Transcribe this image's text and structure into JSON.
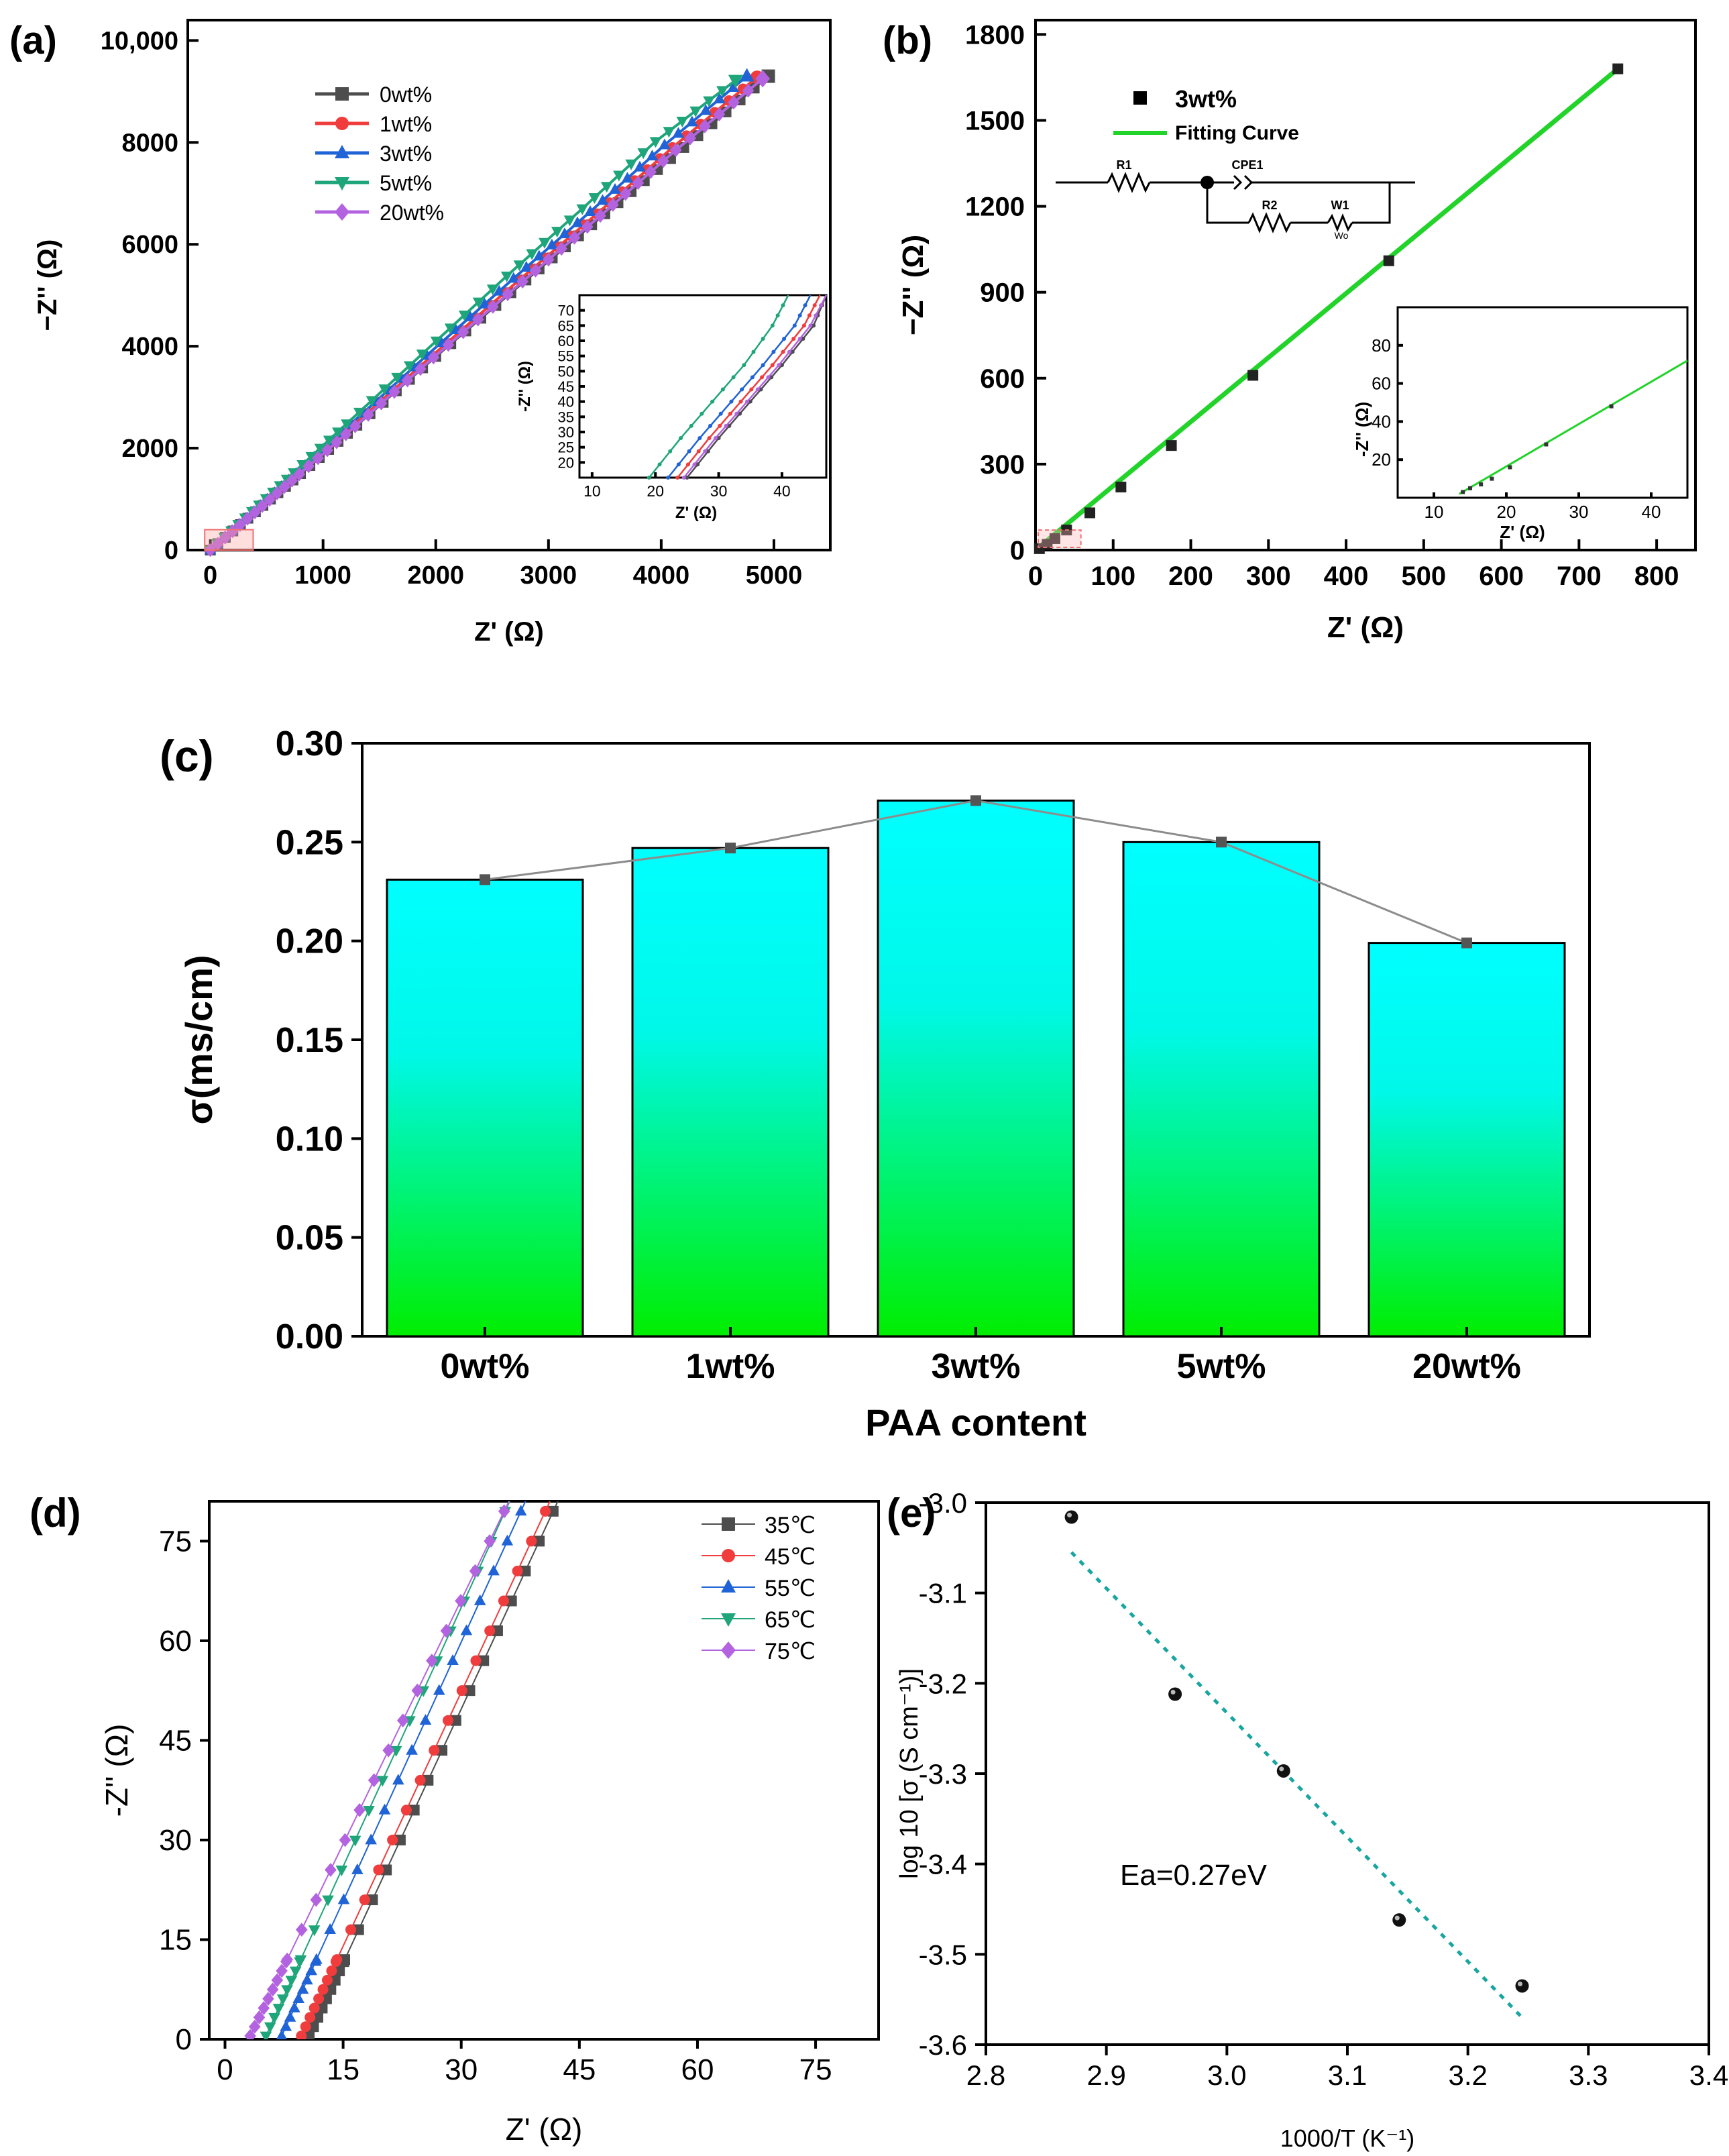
{
  "panels": {
    "a": "(a)",
    "b": "(b)",
    "c": "(c)",
    "d": "(d)",
    "e": "(e)"
  },
  "chart_data": [
    {
      "id": "a",
      "type": "line",
      "xlabel": "Z' (Ω)",
      "ylabel": "−Z'' (Ω)",
      "xlim": [
        -200,
        5500
      ],
      "ylim": [
        0,
        10400
      ],
      "xticks": [
        "0",
        "1000",
        "2000",
        "3000",
        "4000",
        "5000"
      ],
      "xtick_values": [
        0,
        1000,
        2000,
        3000,
        4000,
        5000
      ],
      "yticks": [
        "0",
        "2000",
        "4000",
        "6000",
        "8000",
        "10,000"
      ],
      "ytick_values": [
        0,
        2000,
        4000,
        6000,
        8000,
        10000
      ],
      "series": [
        {
          "name": "0wt%",
          "color": "#4d4d4d",
          "marker": "square",
          "x": [
            0,
            400,
            800,
            1300,
            2000,
            2800,
            3500,
            4200,
            4950
          ],
          "y": [
            0,
            750,
            1500,
            2450,
            3800,
            5300,
            6600,
            7900,
            9300
          ]
        },
        {
          "name": "1wt%",
          "color": "#f03c3c",
          "marker": "circle",
          "x": [
            0,
            390,
            780,
            1270,
            1960,
            2740,
            3430,
            4100,
            4850
          ],
          "y": [
            0,
            750,
            1500,
            2450,
            3800,
            5300,
            6600,
            7900,
            9280
          ]
        },
        {
          "name": "3wt%",
          "color": "#1f63d6",
          "marker": "triangle-up",
          "x": [
            0,
            380,
            760,
            1240,
            1920,
            2690,
            3370,
            4030,
            4760
          ],
          "y": [
            0,
            750,
            1500,
            2460,
            3820,
            5330,
            6640,
            7950,
            9300
          ]
        },
        {
          "name": "5wt%",
          "color": "#1ea57a",
          "marker": "triangle-down",
          "x": [
            0,
            370,
            740,
            1210,
            1880,
            2630,
            3300,
            3950,
            4660
          ],
          "y": [
            0,
            760,
            1520,
            2480,
            3850,
            5380,
            6700,
            8020,
            9220
          ]
        },
        {
          "name": "20wt%",
          "color": "#b463e0",
          "marker": "diamond",
          "x": [
            0,
            395,
            790,
            1285,
            1980,
            2770,
            3460,
            4130,
            4900
          ],
          "y": [
            0,
            740,
            1490,
            2430,
            3780,
            5270,
            6560,
            7850,
            9250
          ]
        }
      ],
      "inset": {
        "xlabel": "Z' (Ω)",
        "ylabel": "-Z'' (Ω)",
        "xlim": [
          8,
          47
        ],
        "ylim": [
          15,
          75
        ],
        "xticks": [
          "10",
          "20",
          "30",
          "40"
        ],
        "yticks": [
          "20",
          "25",
          "30",
          "35",
          "40",
          "45",
          "50",
          "55",
          "60",
          "65",
          "70"
        ],
        "series": [
          {
            "name": "0wt%",
            "x": [
              25,
              30,
              35,
              40,
              45,
              47
            ],
            "y": [
              15,
              28,
              40,
              52,
              65,
              75
            ]
          },
          {
            "name": "1wt%",
            "x": [
              23.5,
              28.5,
              33.5,
              38.5,
              43.5,
              46
            ],
            "y": [
              15,
              28,
              40,
              52,
              65,
              75
            ]
          },
          {
            "name": "3wt%",
            "x": [
              22,
              27,
              32,
              37,
              42,
              44.5
            ],
            "y": [
              15,
              28,
              40,
              52,
              65,
              75
            ]
          },
          {
            "name": "5wt%",
            "x": [
              19,
              24,
              29,
              34,
              38.5,
              41
            ],
            "y": [
              15,
              28,
              40,
              52,
              65,
              75
            ]
          },
          {
            "name": "20wt%",
            "x": [
              24.5,
              29.5,
              34.5,
              39.5,
              44.5,
              47
            ],
            "y": [
              15,
              28,
              40,
              52,
              65,
              75
            ]
          }
        ]
      }
    },
    {
      "id": "b",
      "type": "scatter",
      "xlabel": "Z' (Ω)",
      "ylabel": "−Z'' (Ω)",
      "xlim": [
        0,
        850
      ],
      "ylim": [
        0,
        1850
      ],
      "xticks": [
        "0",
        "100",
        "200",
        "300",
        "400",
        "500",
        "600",
        "700",
        "800"
      ],
      "xtick_values": [
        0,
        100,
        200,
        300,
        400,
        500,
        600,
        700,
        800
      ],
      "yticks": [
        "0",
        "300",
        "600",
        "900",
        "1200",
        "1500",
        "1800"
      ],
      "ytick_values": [
        0,
        300,
        600,
        900,
        1200,
        1500,
        1800
      ],
      "series": [
        {
          "name": "3wt%",
          "x": [
            5,
            15,
            25,
            40,
            70,
            110,
            175,
            280,
            455,
            750
          ],
          "y": [
            5,
            20,
            40,
            70,
            130,
            220,
            365,
            610,
            1010,
            1680
          ]
        },
        {
          "name": "Fitting Curve",
          "x": [
            0,
            750
          ],
          "y": [
            0,
            1680
          ]
        }
      ],
      "circuit": {
        "r1": "R1",
        "cpe": "CPE1",
        "r2": "R2",
        "w1": "W1",
        "wo": "Wo"
      },
      "inset": {
        "xlabel": "Z' (Ω)",
        "ylabel": "-Z'' (Ω)",
        "xlim": [
          5,
          45
        ],
        "ylim": [
          0,
          100
        ],
        "xticks": [
          "10",
          "20",
          "30",
          "40"
        ],
        "yticks": [
          "20",
          "40",
          "60",
          "80"
        ],
        "x": [
          14,
          15,
          16.5,
          18,
          20.5,
          25.5,
          34.5
        ],
        "y": [
          3,
          5,
          7,
          10,
          16,
          28,
          48
        ]
      }
    },
    {
      "id": "c",
      "type": "bar",
      "xlabel": "PAA content",
      "ylabel": "σ(ms/cm)",
      "categories": [
        "0wt%",
        "1wt%",
        "3wt%",
        "5wt%",
        "20wt%"
      ],
      "values": [
        0.231,
        0.247,
        0.271,
        0.25,
        0.199
      ],
      "ylim": [
        0,
        0.3
      ],
      "yticks": [
        "0.00",
        "0.05",
        "0.10",
        "0.15",
        "0.20",
        "0.25",
        "0.30"
      ],
      "ytick_values": [
        0,
        0.05,
        0.1,
        0.15,
        0.2,
        0.25,
        0.3
      ]
    },
    {
      "id": "d",
      "type": "line",
      "xlabel": "Z' (Ω)",
      "ylabel": "-Z'' (Ω)",
      "xlim": [
        -2,
        83
      ],
      "ylim": [
        0,
        81
      ],
      "xticks": [
        "0",
        "15",
        "30",
        "45",
        "60",
        "75"
      ],
      "xtick_values": [
        0,
        15,
        30,
        45,
        60,
        75
      ],
      "yticks": [
        "0",
        "15",
        "30",
        "45",
        "60",
        "75"
      ],
      "ytick_values": [
        0,
        15,
        30,
        45,
        60,
        75
      ],
      "series": [
        {
          "name": "35℃",
          "color": "#4d4d4d",
          "marker": "square",
          "x0": 10.5,
          "slope": 2.55
        },
        {
          "name": "45℃",
          "color": "#f03c3c",
          "marker": "circle",
          "x0": 9.5,
          "slope": 2.55
        },
        {
          "name": "55℃",
          "color": "#1f63d6",
          "marker": "triangle-up",
          "x0": 7.0,
          "slope": 2.6
        },
        {
          "name": "65℃",
          "color": "#1ea57a",
          "marker": "triangle-down",
          "x0": 5.0,
          "slope": 2.6
        },
        {
          "name": "75℃",
          "color": "#b463e0",
          "marker": "diamond",
          "x0": 3.0,
          "slope": 2.45
        }
      ]
    },
    {
      "id": "e",
      "type": "scatter",
      "xlabel": "1000/T (K⁻¹)",
      "ylabel": "log 10 [σ (S cm⁻¹)]",
      "xlim": [
        2.8,
        3.4
      ],
      "ylim": [
        -3.6,
        -3.0
      ],
      "xticks": [
        "2.8",
        "2.9",
        "3.0",
        "3.1",
        "3.2",
        "3.3",
        "3.4"
      ],
      "xtick_values": [
        2.8,
        2.9,
        3.0,
        3.1,
        3.2,
        3.3,
        3.4
      ],
      "yticks": [
        "-3.0",
        "-3.1",
        "-3.2",
        "-3.3",
        "-3.4",
        "-3.5",
        "-3.6"
      ],
      "ytick_values": [
        -3.0,
        -3.1,
        -3.2,
        -3.3,
        -3.4,
        -3.5,
        -3.6
      ],
      "x": [
        2.871,
        2.957,
        3.047,
        3.143,
        3.245
      ],
      "y": [
        -3.016,
        -3.212,
        -3.297,
        -3.462,
        -3.535
      ],
      "fit": {
        "x": [
          2.871,
          3.245
        ],
        "y": [
          -3.055,
          -3.57
        ]
      },
      "annotation": "Ea=0.27eV"
    }
  ]
}
